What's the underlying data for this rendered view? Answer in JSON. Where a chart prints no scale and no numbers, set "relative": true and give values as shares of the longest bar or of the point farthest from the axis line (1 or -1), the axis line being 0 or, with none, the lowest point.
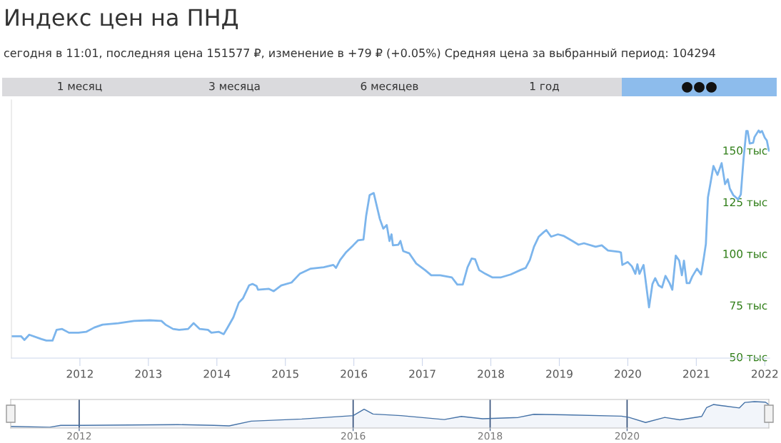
{
  "chart_data": [
    {
      "type": "line",
      "title": "Индекс цен на ПНД",
      "subtitle": "сегодня в 11:01, последняя цена 151577 ₽, изменение в +79 ₽ (+0.05%) Средняя цена за выбранный период: 104294",
      "annotations": [
        "1 месяц",
        "3 месяца",
        "6 месяцев",
        "1 год",
        "●●●"
      ],
      "xlim": [
        2011.0,
        2022.07
      ],
      "xticks": [
        2012,
        2013,
        2014,
        2015,
        2016,
        2017,
        2018,
        2019,
        2020,
        2021,
        2022
      ],
      "ylim": [
        50,
        175
      ],
      "yticks": [
        {
          "value": 50,
          "label": "50 тыс"
        },
        {
          "value": 75,
          "label": "75 тыс"
        },
        {
          "value": 100,
          "label": "100 тыс"
        },
        {
          "value": 125,
          "label": "125 тыс"
        },
        {
          "value": 150,
          "label": "150 тыс"
        }
      ],
      "grid": false,
      "legend": false,
      "series": [
        {
          "color": "#7cb5ec",
          "x": [
            2011.0,
            2011.14,
            2011.19,
            2011.26,
            2011.44,
            2011.51,
            2011.6,
            2011.66,
            2011.74,
            2011.84,
            2011.98,
            2012.09,
            2012.21,
            2012.33,
            2012.56,
            2012.79,
            2013.02,
            2013.19,
            2013.25,
            2013.36,
            2013.45,
            2013.58,
            2013.66,
            2013.75,
            2013.87,
            2013.92,
            2014.03,
            2014.1,
            2014.15,
            2014.24,
            2014.32,
            2014.38,
            2014.47,
            2014.52,
            2014.58,
            2014.6,
            2014.76,
            2014.83,
            2014.94,
            2015.09,
            2015.21,
            2015.37,
            2015.56,
            2015.7,
            2015.74,
            2015.8,
            2015.89,
            2015.99,
            2016.06,
            2016.14,
            2016.18,
            2016.23,
            2016.29,
            2016.38,
            2016.43,
            2016.48,
            2016.52,
            2016.55,
            2016.57,
            2016.65,
            2016.68,
            2016.72,
            2016.81,
            2016.91,
            2017.04,
            2017.13,
            2017.26,
            2017.43,
            2017.51,
            2017.59,
            2017.66,
            2017.72,
            2017.77,
            2017.83,
            2017.92,
            2018.02,
            2018.15,
            2018.29,
            2018.43,
            2018.51,
            2018.57,
            2018.63,
            2018.7,
            2018.77,
            2018.81,
            2018.88,
            2018.98,
            2019.06,
            2019.19,
            2019.28,
            2019.36,
            2019.53,
            2019.62,
            2019.71,
            2019.88,
            2019.9,
            2019.92,
            2020.0,
            2020.06,
            2020.11,
            2020.14,
            2020.17,
            2020.23,
            2020.25,
            2020.31,
            2020.36,
            2020.4,
            2020.45,
            2020.5,
            2020.55,
            2020.61,
            2020.65,
            2020.7,
            2020.75,
            2020.79,
            2020.82,
            2020.86,
            2020.9,
            2020.94,
            2021.01,
            2021.07,
            2021.11,
            2021.14,
            2021.17,
            2021.21,
            2021.25,
            2021.31,
            2021.37,
            2021.42,
            2021.46,
            2021.49,
            2021.54,
            2021.61,
            2021.65,
            2021.69,
            2021.73,
            2021.75,
            2021.78,
            2021.83,
            2021.85,
            2021.91,
            2021.93,
            2021.96,
            2022.0,
            2022.03,
            2022.06
          ],
          "values": [
            60.6,
            60.6,
            58.8,
            61.3,
            59.2,
            58.5,
            58.5,
            63.7,
            64.1,
            62.3,
            62.3,
            62.7,
            64.8,
            66.2,
            66.9,
            68.0,
            68.3,
            68.0,
            66.2,
            64.1,
            63.7,
            64.1,
            66.9,
            64.1,
            63.7,
            62.3,
            62.7,
            61.6,
            64.4,
            69.7,
            76.8,
            78.9,
            85.2,
            85.9,
            84.9,
            83.1,
            83.5,
            82.4,
            85.2,
            86.6,
            90.8,
            93.3,
            94.0,
            95.1,
            93.7,
            97.5,
            101.4,
            104.6,
            107.0,
            107.4,
            119.0,
            128.9,
            129.9,
            117.3,
            112.7,
            114.4,
            106.7,
            109.9,
            104.6,
            104.9,
            106.7,
            101.8,
            100.7,
            95.8,
            92.6,
            90.1,
            90.1,
            89.1,
            85.6,
            85.6,
            94.0,
            98.2,
            97.9,
            92.6,
            90.8,
            89.1,
            89.1,
            90.5,
            92.6,
            93.7,
            97.5,
            103.9,
            108.8,
            110.9,
            112.0,
            108.8,
            109.9,
            109.2,
            106.7,
            104.9,
            105.6,
            103.9,
            104.6,
            102.1,
            101.4,
            101.1,
            95.1,
            96.5,
            94.4,
            90.8,
            95.4,
            90.8,
            95.1,
            90.1,
            74.6,
            85.9,
            88.7,
            85.2,
            84.2,
            89.8,
            86.3,
            83.1,
            99.6,
            97.2,
            90.1,
            97.2,
            86.3,
            86.3,
            89.4,
            93.3,
            90.5,
            98.6,
            105.3,
            127.8,
            135.2,
            143.0,
            138.7,
            144.4,
            134.2,
            136.6,
            132.0,
            128.9,
            126.8,
            129.2,
            146.5,
            159.9,
            159.9,
            153.9,
            154.2,
            157.0,
            160.2,
            159.2,
            159.9,
            156.7,
            155.3,
            150.4
          ]
        }
      ]
    },
    {
      "type": "area",
      "relative": true,
      "grid": "x",
      "legend": false,
      "xlim": [
        2011.0,
        2022.07
      ],
      "xticks": [
        2012,
        2016,
        2018,
        2020
      ],
      "series": [
        {
          "color": "#4572a7",
          "x": [
            2011.0,
            2011.57,
            2011.73,
            2012.04,
            2013.44,
            2013.97,
            2014.19,
            2014.51,
            2015.25,
            2016.0,
            2016.16,
            2016.29,
            2016.7,
            2017.33,
            2017.58,
            2017.89,
            2018.41,
            2018.64,
            2019.09,
            2019.92,
            2020.03,
            2020.27,
            2020.55,
            2020.77,
            2021.09,
            2021.16,
            2021.26,
            2021.37,
            2021.64,
            2021.72,
            2021.86,
            2022.02,
            2022.07
          ],
          "values": [
            0.06,
            0.03,
            0.1,
            0.1,
            0.13,
            0.1,
            0.08,
            0.26,
            0.34,
            0.47,
            0.71,
            0.53,
            0.47,
            0.32,
            0.44,
            0.35,
            0.4,
            0.52,
            0.5,
            0.45,
            0.4,
            0.21,
            0.4,
            0.31,
            0.44,
            0.77,
            0.89,
            0.85,
            0.76,
            0.97,
            1.0,
            0.98,
            0.89
          ]
        }
      ]
    }
  ]
}
